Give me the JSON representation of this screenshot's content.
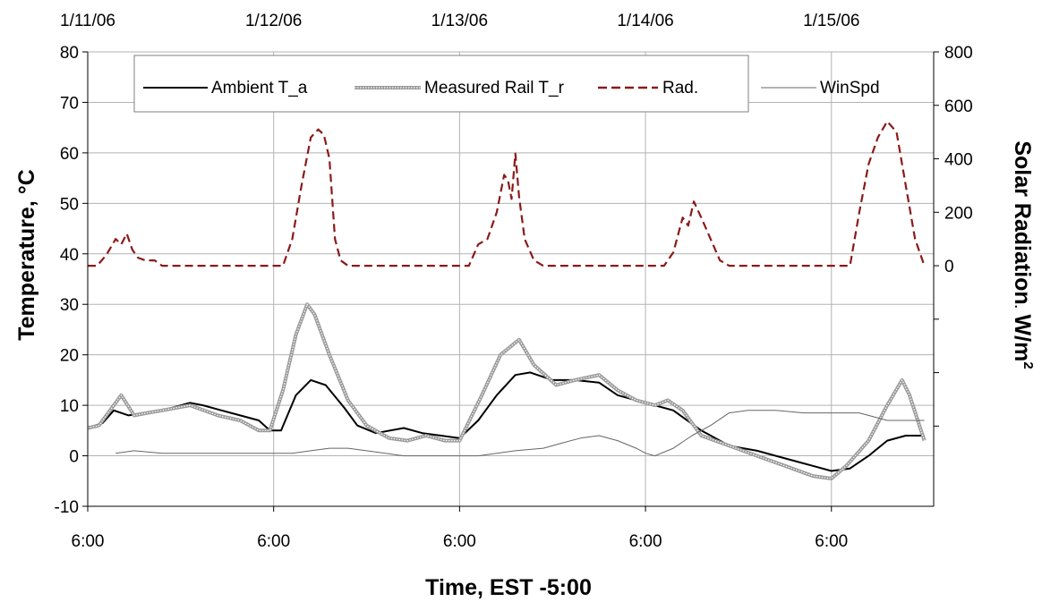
{
  "chart_data": {
    "type": "line",
    "xlabel": "Time, EST -5:00",
    "ylabel": "Temperature, °C",
    "y2label_main": "Solar Radiation",
    "y2label_sep": ".",
    "y2label_unit": " W/m",
    "y2label_sup": "2",
    "x_unit": "days from 1/11/06 6:00",
    "xlim": [
      0,
      4.55
    ],
    "ylim": [
      -10,
      80
    ],
    "y2lim": [
      -900,
      800
    ],
    "grid": true,
    "legend_position": "top",
    "top_tick_labels": [
      "1/11/06",
      "1/12/06",
      "1/13/06",
      "1/14/06",
      "1/15/06"
    ],
    "bottom_tick_labels": [
      "6:00",
      "6:00",
      "6:00",
      "6:00",
      "6:00"
    ],
    "y_ticks": [
      -10,
      0,
      10,
      20,
      30,
      40,
      50,
      60,
      70,
      80
    ],
    "y_tick_labels": [
      "-10",
      "0",
      "10",
      "20",
      "30",
      "40",
      "50",
      "60",
      "70",
      "80"
    ],
    "y2_ticks": [
      0,
      200,
      400,
      600,
      800
    ],
    "y2_tick_labels": [
      "0",
      "200",
      "400",
      "600",
      "800"
    ],
    "y2_minor_ticks": [
      -200,
      -400,
      -600
    ],
    "series": [
      {
        "name": "Ambient T_a",
        "axis": "left",
        "color": "#000000",
        "style": "solid",
        "x": [
          0,
          0.08,
          0.14,
          0.22,
          0.3,
          0.4,
          0.55,
          0.62,
          0.72,
          0.82,
          0.92,
          0.98,
          1.04,
          1.12,
          1.2,
          1.28,
          1.38,
          1.45,
          1.55,
          1.7,
          1.8,
          1.9,
          2.0,
          2.1,
          2.2,
          2.3,
          2.38,
          2.5,
          2.62,
          2.75,
          2.85,
          2.95,
          3.05,
          3.15,
          3.3,
          3.45,
          3.6,
          3.75,
          3.9,
          4.0,
          4.1,
          4.2,
          4.3,
          4.4,
          4.5
        ],
        "y": [
          5.5,
          6.5,
          9,
          8,
          8.5,
          9,
          10.5,
          10,
          9,
          8,
          7,
          5,
          5,
          12,
          15,
          14,
          9.5,
          6,
          4.5,
          5.5,
          4.5,
          4,
          3.5,
          7,
          12,
          16,
          16.5,
          15,
          15,
          14.5,
          12,
          11,
          10,
          9,
          5,
          2,
          1,
          -0.5,
          -2,
          -3,
          -2.5,
          0,
          3,
          4,
          4
        ]
      },
      {
        "name": "Measured Rail  T_r",
        "axis": "left",
        "color": "#999999",
        "style": "double",
        "x": [
          0,
          0.06,
          0.12,
          0.18,
          0.25,
          0.32,
          0.4,
          0.55,
          0.7,
          0.82,
          0.92,
          0.98,
          1.05,
          1.12,
          1.18,
          1.22,
          1.3,
          1.4,
          1.5,
          1.62,
          1.72,
          1.82,
          1.92,
          2.0,
          2.12,
          2.22,
          2.32,
          2.4,
          2.52,
          2.62,
          2.75,
          2.85,
          2.95,
          3.05,
          3.12,
          3.2,
          3.3,
          3.45,
          3.6,
          3.75,
          3.9,
          4.0,
          4.08,
          4.2,
          4.3,
          4.38,
          4.42,
          4.5
        ],
        "y": [
          5.5,
          6,
          9,
          12,
          8,
          8.5,
          9,
          10,
          8,
          7,
          5,
          5,
          13,
          24,
          30,
          28,
          20,
          11,
          6,
          3.5,
          3,
          4,
          3,
          3,
          12,
          20,
          23,
          18,
          14,
          15,
          16,
          13,
          11,
          10,
          11,
          9,
          4,
          2,
          0,
          -2,
          -4,
          -4.5,
          -2,
          3,
          10,
          15,
          12,
          3
        ]
      },
      {
        "name": "Rad.",
        "axis": "right",
        "color": "#8b1a1a",
        "style": "dashed",
        "x": [
          0,
          0.05,
          0.1,
          0.15,
          0.18,
          0.21,
          0.24,
          0.27,
          0.31,
          0.36,
          0.4,
          0.45,
          0.8,
          1.0,
          1.05,
          1.1,
          1.15,
          1.2,
          1.24,
          1.27,
          1.3,
          1.33,
          1.36,
          1.4,
          1.45,
          1.5,
          2.0,
          2.05,
          2.1,
          2.15,
          2.2,
          2.24,
          2.26,
          2.28,
          2.3,
          2.32,
          2.35,
          2.4,
          2.45,
          3.0,
          3.05,
          3.1,
          3.15,
          3.2,
          3.23,
          3.26,
          3.3,
          3.35,
          3.4,
          3.45,
          4.0,
          4.05,
          4.1,
          4.15,
          4.2,
          4.25,
          4.3,
          4.35,
          4.4,
          4.45,
          4.5
        ],
        "y": [
          0,
          0,
          40,
          100,
          80,
          120,
          60,
          30,
          20,
          20,
          0,
          0,
          0,
          0,
          0,
          100,
          300,
          480,
          510,
          490,
          400,
          100,
          20,
          0,
          0,
          0,
          0,
          0,
          80,
          100,
          200,
          340,
          320,
          250,
          420,
          260,
          100,
          20,
          0,
          0,
          0,
          0,
          50,
          180,
          150,
          240,
          180,
          100,
          20,
          0,
          0,
          0,
          0,
          200,
          380,
          480,
          540,
          500,
          300,
          100,
          0
        ]
      },
      {
        "name": "WinSpd",
        "axis": "left",
        "color": "#666666",
        "style": "solid-thin",
        "x": [
          0.15,
          0.25,
          0.4,
          0.6,
          0.8,
          0.95,
          1.1,
          1.2,
          1.3,
          1.4,
          1.5,
          1.7,
          1.9,
          2.1,
          2.3,
          2.45,
          2.55,
          2.65,
          2.75,
          2.85,
          2.95,
          3.0,
          3.05,
          3.15,
          3.25,
          3.35,
          3.45,
          3.55,
          3.7,
          3.85,
          4.0,
          4.15,
          4.3,
          4.5
        ],
        "y": [
          0.5,
          1,
          0.5,
          0.5,
          0.5,
          0.5,
          0.5,
          1,
          1.5,
          1.5,
          1,
          0,
          0,
          0,
          1,
          1.5,
          2.5,
          3.5,
          4,
          3,
          1.5,
          0.5,
          0,
          1.5,
          4,
          6,
          8.5,
          9,
          9,
          8.5,
          8.5,
          8.5,
          7,
          7
        ]
      }
    ]
  }
}
